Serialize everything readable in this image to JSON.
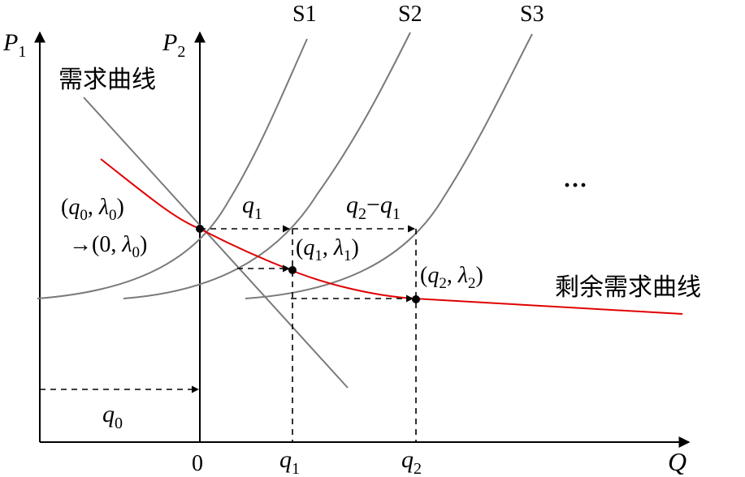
{
  "axes": {
    "p1": "P",
    "p1_sub": "1",
    "p2": "P",
    "p2_sub": "2",
    "q": "Q"
  },
  "supply_labels": [
    "S1",
    "S2",
    "S3"
  ],
  "demand_label": "需求曲线",
  "residual_label": "剩余需求曲线",
  "ellipsis": "···",
  "x_ticks": {
    "zero": "0",
    "q1": "q",
    "q1_sub": "1",
    "q2": "q",
    "q2_sub": "2"
  },
  "arrow_labels": {
    "q0": "q",
    "q0_sub": "0",
    "q1": "q",
    "q1_sub": "1",
    "q2": "q",
    "q2_sub": "2",
    "minus": "−",
    "q1b": "q",
    "q1b_sub": "1"
  },
  "points": {
    "p0": {
      "open": "(",
      "q": "q",
      "qsub": "0",
      "comma": ", ",
      "l": "λ",
      "lsub": "0",
      "close": ")"
    },
    "p0_mapped": {
      "arrow": "→",
      "open": "(0, ",
      "l": "λ",
      "lsub": "0",
      "close": ")"
    },
    "p1": {
      "open": "(",
      "q": "q",
      "qsub": "1",
      "comma": ", ",
      "l": "λ",
      "lsub": "1",
      "close": ")"
    },
    "p2": {
      "open": "(",
      "q": "q",
      "qsub": "2",
      "comma": ", ",
      "l": "λ",
      "lsub": "2",
      "close": ")"
    }
  },
  "colors": {
    "residual": "#e00000",
    "curves": "#7a7a7a",
    "axes": "#000000"
  }
}
